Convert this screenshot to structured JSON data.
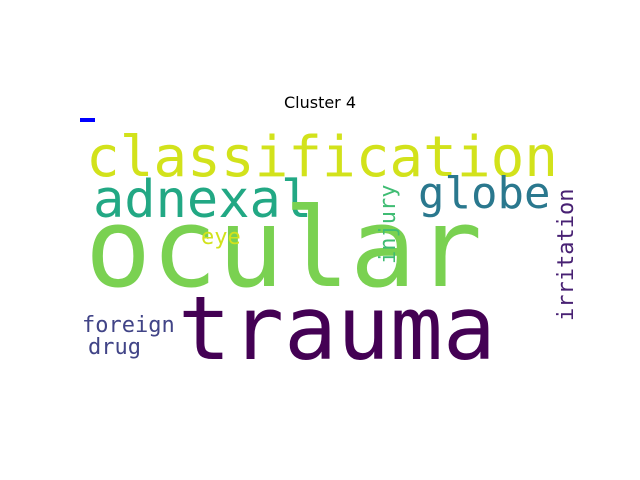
{
  "title": "Cluster 4",
  "words": [
    {
      "text": "classification",
      "color": "#d2e21b"
    },
    {
      "text": "adnexal",
      "color": "#22a884"
    },
    {
      "text": "globe",
      "color": "#2a788e"
    },
    {
      "text": "ocular",
      "color": "#7ad151"
    },
    {
      "text": "trauma",
      "color": "#440154"
    },
    {
      "text": "injury",
      "color": "#3fbc73"
    },
    {
      "text": "irritation",
      "color": "#482173"
    },
    {
      "text": "eye",
      "color": "#d2e21b"
    },
    {
      "text": "foreign",
      "color": "#414487"
    },
    {
      "text": "drug",
      "color": "#414487"
    }
  ],
  "colors": {
    "background": "#ffffff",
    "marker": "#0000ff"
  }
}
